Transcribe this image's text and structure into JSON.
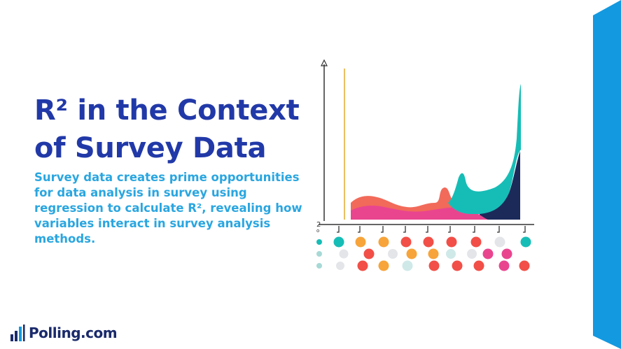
{
  "slide": {
    "title": "R² in the Context of Survey Data",
    "body": "Survey data creates prime opportunities for data analysis in survey using regression to calculate R², revealing how variables interact in survey analysis methods."
  },
  "brand": {
    "logo_text": "Polling.com",
    "logo_icon": "bar-chart-icon"
  },
  "illustration": {
    "axis_glyph": "2\n0"
  },
  "colors": {
    "title": "#2139a8",
    "body": "#2aa6e0",
    "side_bar": "#1399e0",
    "logo_text": "#1a2a6b",
    "teal": "#16bdb6",
    "navy": "#1c2a5a",
    "pink": "#e9458f",
    "coral": "#f2645a",
    "orange": "#f7a43a",
    "red": "#f14f47",
    "grey": "#e3e5e8",
    "gold": "#e9c063"
  }
}
